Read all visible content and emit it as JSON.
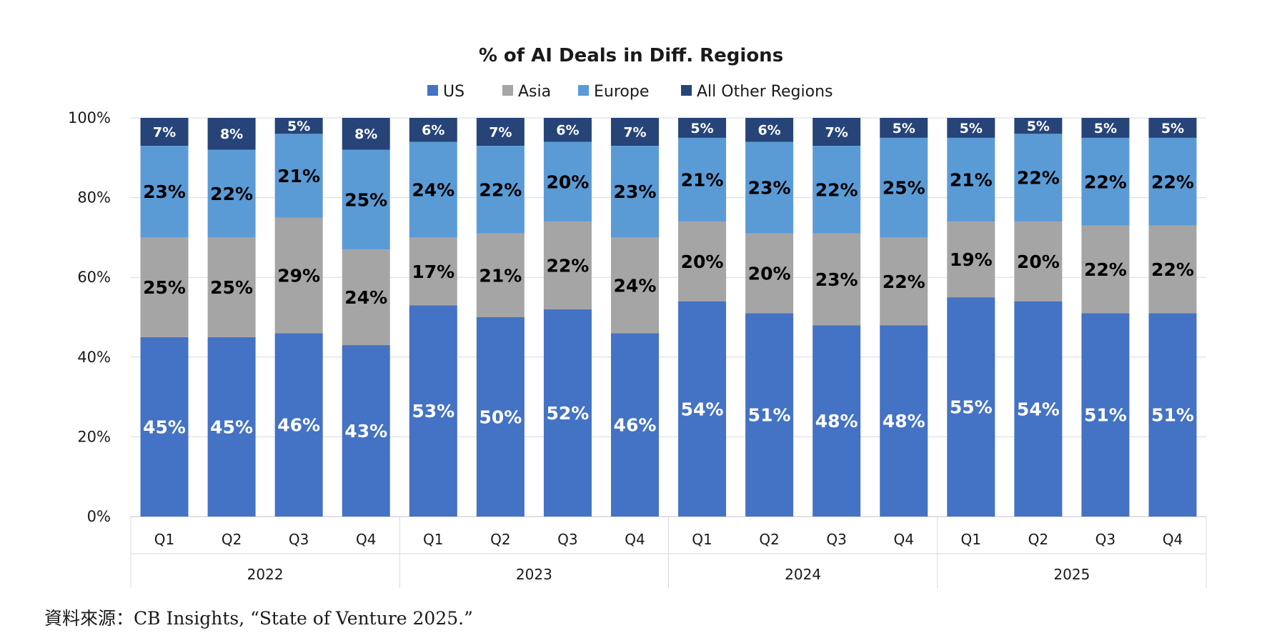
{
  "chart_data": {
    "type": "bar",
    "stacked": true,
    "title": "% of AI Deals in Diff. Regions",
    "xlabel": "",
    "ylabel": "",
    "ylim": [
      0,
      100
    ],
    "yticks": [
      "0%",
      "20%",
      "40%",
      "60%",
      "80%",
      "100%"
    ],
    "ytick_values": [
      0,
      20,
      40,
      60,
      80,
      100
    ],
    "grid": true,
    "legend_position": "top-center",
    "categories": [
      "Q1",
      "Q2",
      "Q3",
      "Q4",
      "Q1",
      "Q2",
      "Q3",
      "Q4",
      "Q1",
      "Q2",
      "Q3",
      "Q4",
      "Q1",
      "Q2",
      "Q3",
      "Q4"
    ],
    "groups": [
      {
        "label": "2022",
        "count": 4
      },
      {
        "label": "2023",
        "count": 4
      },
      {
        "label": "2024",
        "count": 4
      },
      {
        "label": "2025",
        "count": 4
      }
    ],
    "series": [
      {
        "name": "US",
        "color": "#4472C4",
        "label_color": "white",
        "values": [
          45,
          45,
          46,
          43,
          53,
          50,
          52,
          46,
          54,
          51,
          48,
          48,
          55,
          54,
          51,
          51
        ]
      },
      {
        "name": "Asia",
        "color": "#A5A5A5",
        "label_color": "black",
        "values": [
          25,
          25,
          29,
          24,
          17,
          21,
          22,
          24,
          20,
          20,
          23,
          22,
          19,
          20,
          22,
          22
        ]
      },
      {
        "name": "Europe",
        "color": "#5B9BD5",
        "label_color": "black",
        "values": [
          23,
          22,
          21,
          25,
          24,
          22,
          20,
          23,
          21,
          23,
          22,
          25,
          21,
          22,
          22,
          22
        ]
      },
      {
        "name": "All Other Regions",
        "color": "#264478",
        "label_color": "white",
        "values": [
          7,
          8,
          5,
          8,
          6,
          7,
          6,
          7,
          5,
          6,
          7,
          5,
          5,
          5,
          5,
          5
        ]
      }
    ]
  },
  "source": {
    "text": "資料來源：CB Insights, “State of Venture 2025.”"
  }
}
